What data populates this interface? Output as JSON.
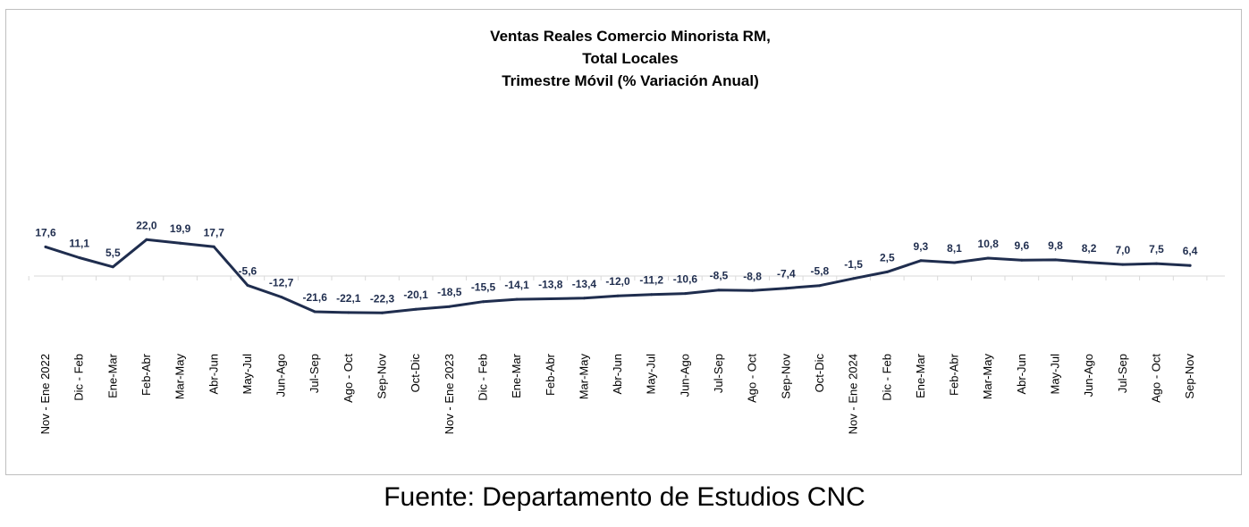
{
  "chart_data": {
    "type": "line",
    "title": [
      "Ventas Reales Comercio Minorista RM,",
      "Total Locales",
      "Trimestre Móvil (% Variación Anual)"
    ],
    "categories": [
      "Nov - Ene 2022",
      "Dic - Feb",
      "Ene-Mar",
      "Feb-Abr",
      "Mar-May",
      "Abr-Jun",
      "May-Jul",
      "Jun-Ago",
      "Jul-Sep",
      "Ago - Oct",
      "Sep-Nov",
      "Oct-Dic",
      "Nov - Ene 2023",
      "Dic - Feb",
      "Ene-Mar",
      "Feb-Abr",
      "Mar-May",
      "Abr-Jun",
      "May-Jul",
      "Jun-Ago",
      "Jul-Sep",
      "Ago - Oct",
      "Sep-Nov",
      "Oct-Dic",
      "Nov - Ene 2024",
      "Dic - Feb",
      "Ene-Mar",
      "Feb-Abr",
      "Mar-May",
      "Abr-Jun",
      "May-Jul",
      "Jun-Ago",
      "Jul-Sep",
      "Ago - Oct",
      "Sep-Nov"
    ],
    "values": [
      17.6,
      11.1,
      5.5,
      22.0,
      19.9,
      17.7,
      -5.6,
      -12.7,
      -21.6,
      -22.1,
      -22.3,
      -20.1,
      -18.5,
      -15.5,
      -14.1,
      -13.8,
      -13.4,
      -12.0,
      -11.2,
      -10.6,
      -8.5,
      -8.8,
      -7.4,
      -5.8,
      -1.5,
      2.5,
      9.3,
      8.1,
      10.8,
      9.6,
      9.8,
      8.2,
      7.0,
      7.5,
      6.4
    ],
    "data_labels": [
      "17,6",
      "11,1",
      "5,5",
      "22,0",
      "19,9",
      "17,7",
      "-5,6",
      "-12,7",
      "-21,6",
      "-22,1",
      "-22,3",
      "-20,1",
      "-18,5",
      "-15,5",
      "-14,1",
      "-13,8",
      "-13,4",
      "-12,0",
      "-11,2",
      "-10,6",
      "-8,5",
      "-8,8",
      "-7,4",
      "-5,8",
      "-1,5",
      "2,5",
      "9,3",
      "8,1",
      "10,8",
      "9,6",
      "9,8",
      "8,2",
      "7,0",
      "7,5",
      "6,4"
    ],
    "xlabel": "",
    "ylabel": "",
    "grid": false,
    "legend": "none",
    "line_color": "#1f2d4e"
  },
  "source": "Fuente: Departamento de Estudios CNC"
}
